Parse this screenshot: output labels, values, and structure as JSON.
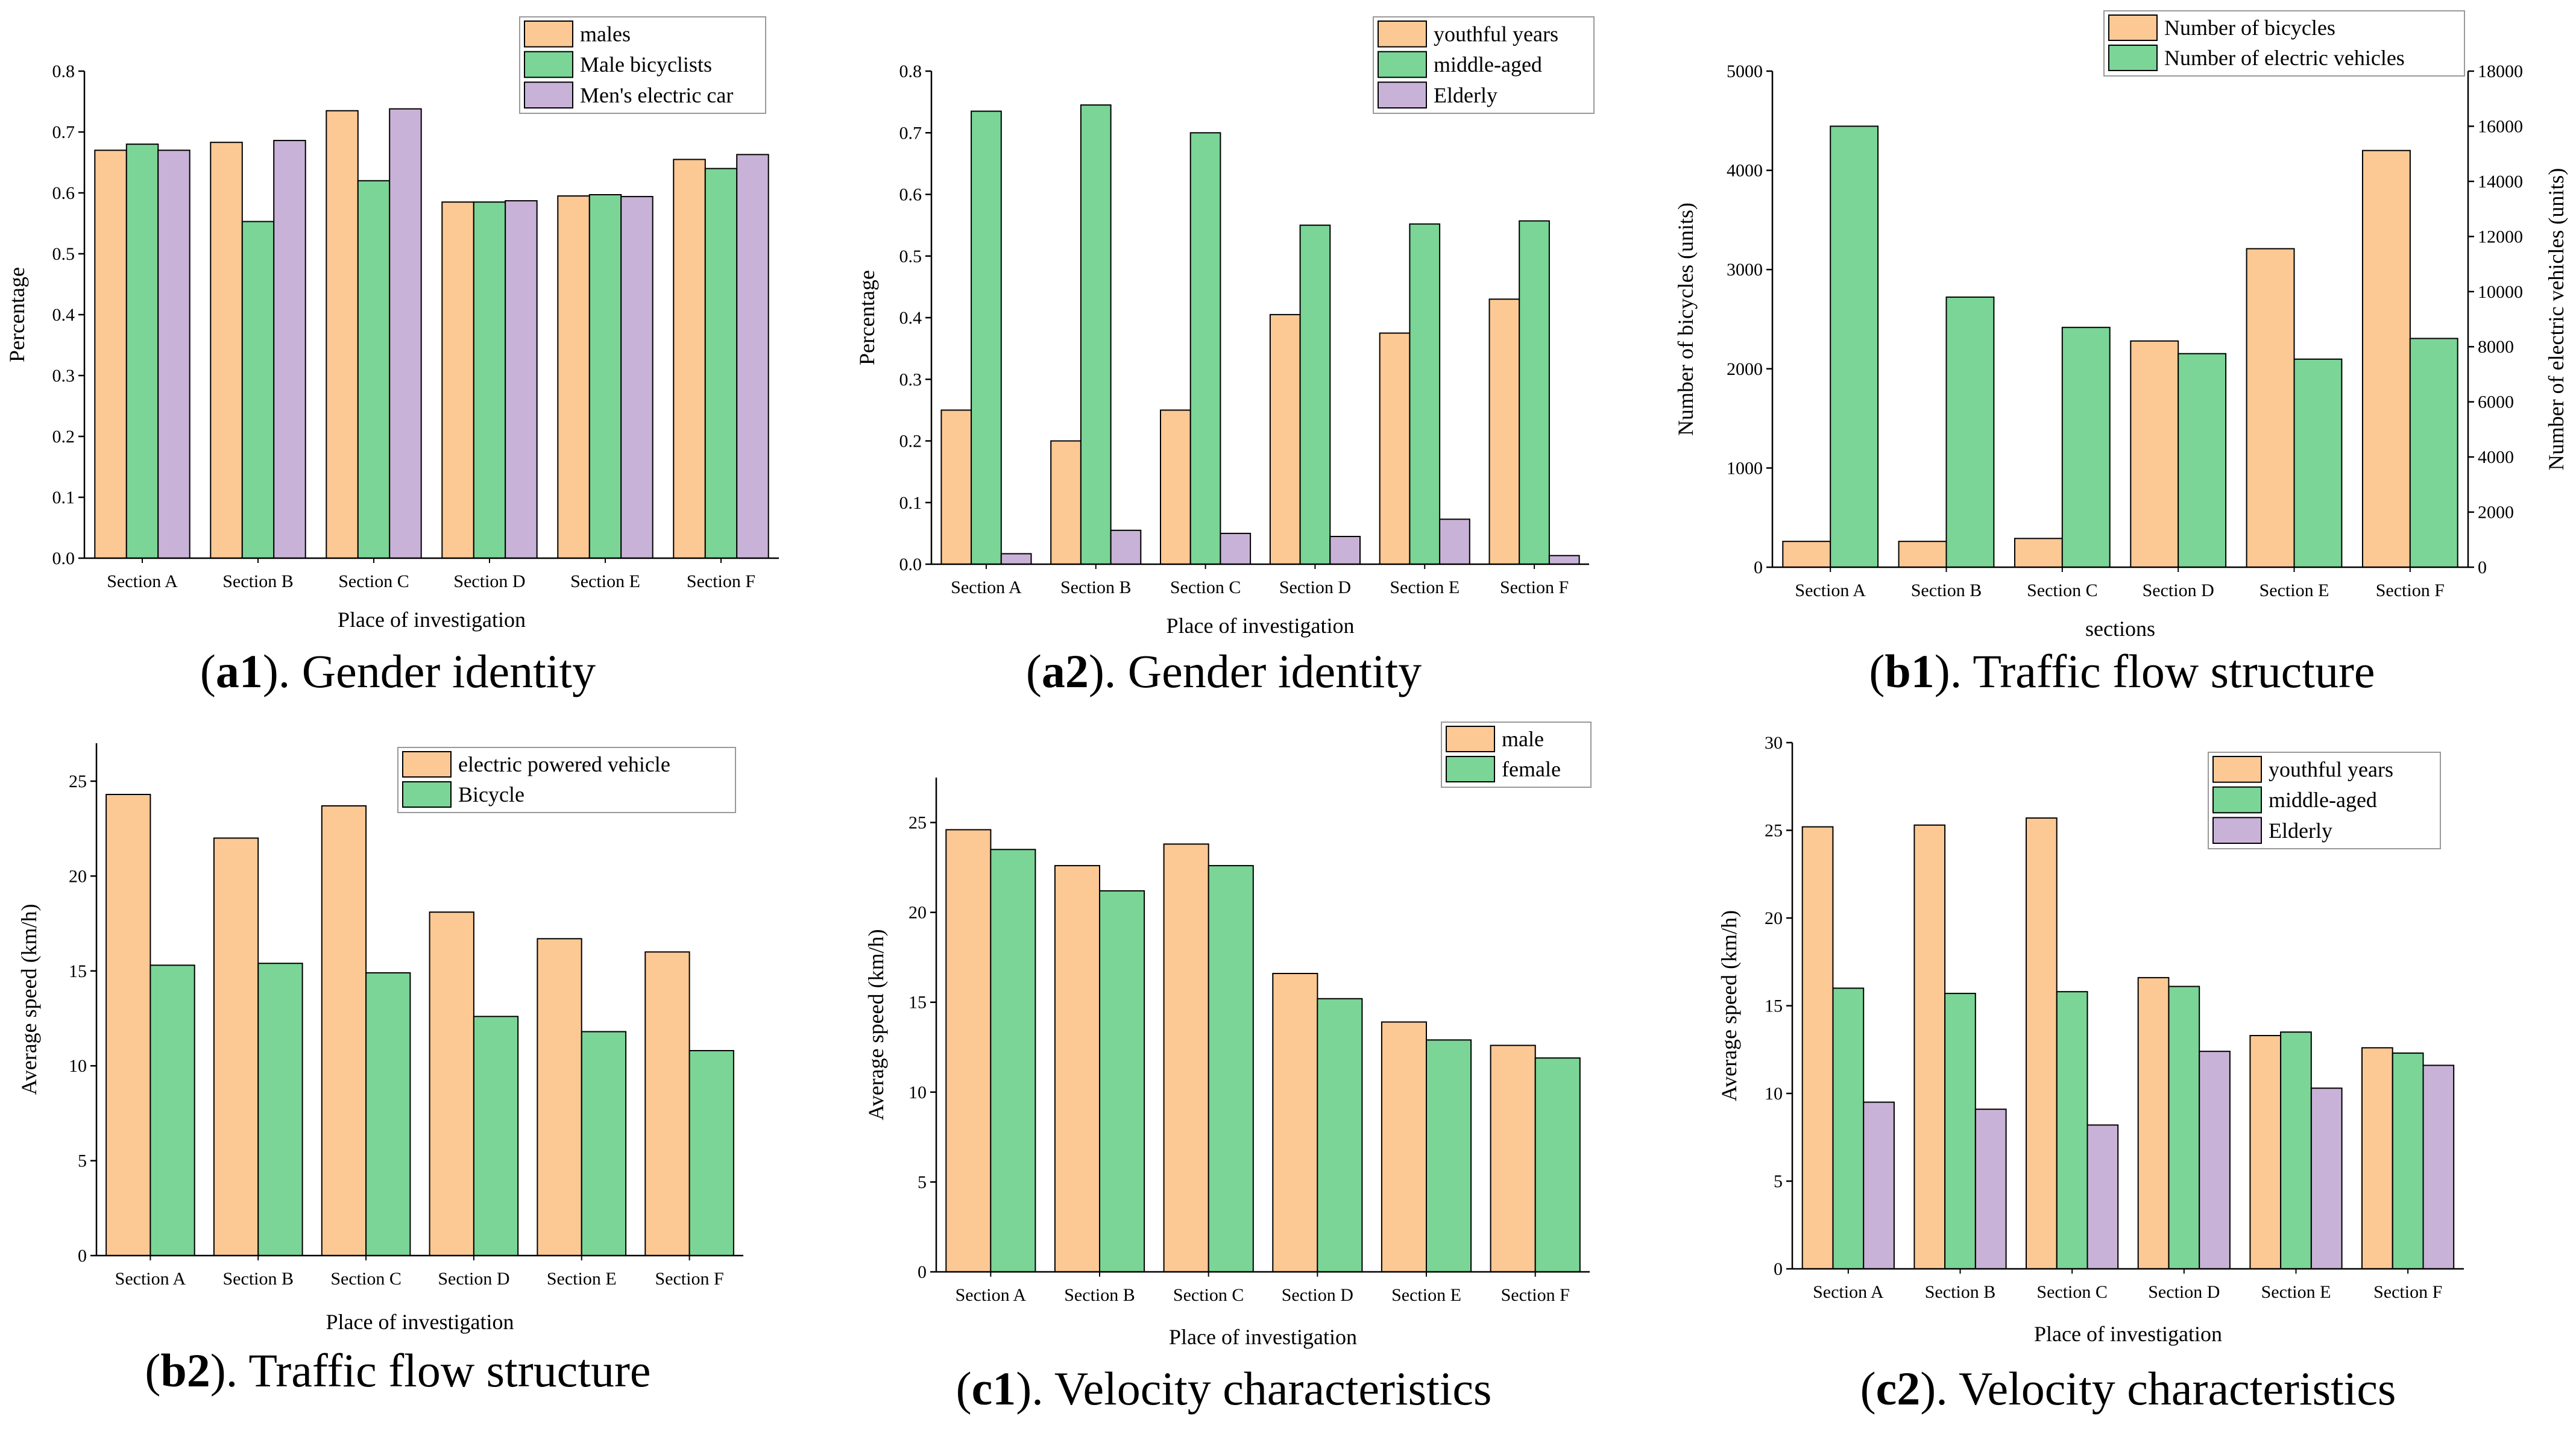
{
  "colors": {
    "orange": "#FCC894",
    "green": "#7AD596",
    "purple": "#C9B2D7",
    "axis": "#000000"
  },
  "chart_data": [
    {
      "id": "a1",
      "type": "bar",
      "caption": {
        "label": "a1",
        "text": "Gender identity"
      },
      "categories": [
        "Section A",
        "Section B",
        "Section C",
        "Section D",
        "Section E",
        "Section F"
      ],
      "series": [
        {
          "name": "males",
          "color": "orange",
          "values": [
            0.67,
            0.683,
            0.735,
            0.585,
            0.595,
            0.655
          ]
        },
        {
          "name": "Male bicyclists",
          "color": "green",
          "values": [
            0.68,
            0.553,
            0.62,
            0.585,
            0.597,
            0.64
          ]
        },
        {
          "name": "Men's electric car",
          "color": "purple",
          "values": [
            0.67,
            0.686,
            0.738,
            0.587,
            0.594,
            0.663
          ]
        }
      ],
      "xlabel": "Place of investigation",
      "ylabel": "Percentage",
      "ylim": [
        0,
        0.8
      ],
      "yticks": [
        "0.0",
        "0.1",
        "0.2",
        "0.3",
        "0.4",
        "0.5",
        "0.6",
        "0.7",
        "0.8"
      ],
      "legend": "top-right"
    },
    {
      "id": "a2",
      "type": "bar",
      "caption": {
        "label": "a2",
        "text": "Gender identity"
      },
      "categories": [
        "Section A",
        "Section B",
        "Section C",
        "Section D",
        "Section E",
        "Section F"
      ],
      "series": [
        {
          "name": "youthful years",
          "color": "orange",
          "values": [
            0.25,
            0.2,
            0.25,
            0.405,
            0.375,
            0.43
          ]
        },
        {
          "name": "middle-aged",
          "color": "green",
          "values": [
            0.735,
            0.745,
            0.7,
            0.55,
            0.552,
            0.557
          ]
        },
        {
          "name": "Elderly",
          "color": "purple",
          "values": [
            0.017,
            0.055,
            0.05,
            0.045,
            0.073,
            0.014
          ]
        }
      ],
      "xlabel": "Place of investigation",
      "ylabel": "Percentage",
      "ylim": [
        0,
        0.8
      ],
      "yticks": [
        "0.0",
        "0.1",
        "0.2",
        "0.3",
        "0.4",
        "0.5",
        "0.6",
        "0.7",
        "0.8"
      ],
      "legend": "top-right"
    },
    {
      "id": "b1",
      "type": "bar",
      "caption": {
        "label": "b1",
        "text": "Traffic flow structure"
      },
      "categories": [
        "Section A",
        "Section B",
        "Section C",
        "Section D",
        "Section E",
        "Section F"
      ],
      "series": [
        {
          "name": "Number of bicycles",
          "color": "orange",
          "axis": "left",
          "values": [
            260,
            260,
            290,
            2280,
            3210,
            4200
          ]
        },
        {
          "name": "Number of electric vehicles",
          "color": "green",
          "axis": "right",
          "values": [
            16000,
            9800,
            8700,
            7750,
            7550,
            8300
          ]
        }
      ],
      "xlabel": "sections",
      "ylabel": "Number of bicycles (units)",
      "ylabel_right": "Number of electric vehicles (units)",
      "ylim": [
        0,
        5000
      ],
      "yticks": [
        "0",
        "1000",
        "2000",
        "3000",
        "4000",
        "5000"
      ],
      "ylim_right": [
        0,
        18000
      ],
      "yticks_right": [
        "0",
        "2000",
        "4000",
        "6000",
        "8000",
        "10000",
        "12000",
        "14000",
        "16000",
        "18000"
      ],
      "legend": "top-right"
    },
    {
      "id": "b2",
      "type": "bar",
      "caption": {
        "label": "b2",
        "text": "Traffic flow structure"
      },
      "categories": [
        "Section A",
        "Section B",
        "Section C",
        "Section D",
        "Section E",
        "Section F"
      ],
      "series": [
        {
          "name": "electric powered vehicle",
          "color": "orange",
          "values": [
            24.3,
            22.0,
            23.7,
            18.1,
            16.7,
            16.0
          ]
        },
        {
          "name": "Bicycle",
          "color": "green",
          "values": [
            15.3,
            15.4,
            14.9,
            12.6,
            11.8,
            10.8
          ]
        }
      ],
      "xlabel": "Place of investigation",
      "ylabel": "Average speed (km/h)",
      "ylim": [
        0,
        27
      ],
      "yticks": [
        "0",
        "5",
        "10",
        "15",
        "20",
        "25"
      ],
      "legend": "top-right"
    },
    {
      "id": "c1",
      "type": "bar",
      "caption": {
        "label": "c1",
        "text": "Velocity characteristics"
      },
      "categories": [
        "Section A",
        "Section B",
        "Section C",
        "Section D",
        "Section E",
        "Section F"
      ],
      "series": [
        {
          "name": "male",
          "color": "orange",
          "values": [
            24.6,
            22.6,
            23.8,
            16.6,
            13.9,
            12.6
          ]
        },
        {
          "name": "female",
          "color": "green",
          "values": [
            23.5,
            21.2,
            22.6,
            15.2,
            12.9,
            11.9
          ]
        }
      ],
      "xlabel": "Place of investigation",
      "ylabel": "Average speed (km/h)",
      "ylim": [
        0,
        27.5
      ],
      "yticks": [
        "0",
        "5",
        "10",
        "15",
        "20",
        "25"
      ],
      "legend": "top-right"
    },
    {
      "id": "c2",
      "type": "bar",
      "caption": {
        "label": "c2",
        "text": "Velocity characteristics"
      },
      "categories": [
        "Section A",
        "Section B",
        "Section C",
        "Section D",
        "Section E",
        "Section F"
      ],
      "series": [
        {
          "name": "youthful years",
          "color": "orange",
          "values": [
            25.2,
            25.3,
            25.7,
            16.6,
            13.3,
            12.6
          ]
        },
        {
          "name": "middle-aged",
          "color": "green",
          "values": [
            16.0,
            15.7,
            15.8,
            16.1,
            13.5,
            12.3
          ]
        },
        {
          "name": "Elderly",
          "color": "purple",
          "values": [
            9.5,
            9.1,
            8.2,
            12.4,
            10.3,
            11.6
          ]
        }
      ],
      "xlabel": "Place of investigation",
      "ylabel": "Average speed (km/h)",
      "ylim": [
        0,
        30
      ],
      "yticks": [
        "0",
        "5",
        "10",
        "15",
        "20",
        "25",
        "30"
      ],
      "legend": "top-right"
    }
  ]
}
